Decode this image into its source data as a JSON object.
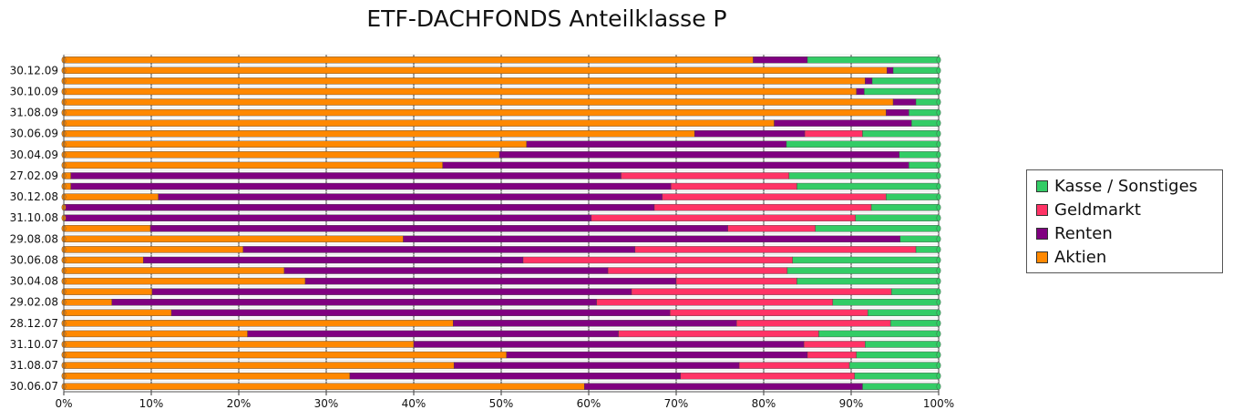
{
  "chart_data": {
    "type": "bar",
    "orientation": "horizontal",
    "stacked": true,
    "title": "ETF-DACHFONDS Anteilklasse P",
    "xlabel": "",
    "ylabel": "",
    "xlim": [
      0,
      100
    ],
    "grid": true,
    "legend_position": "right",
    "x_ticks": [
      "0%",
      "10%",
      "20%",
      "30%",
      "40%",
      "50%",
      "60%",
      "70%",
      "80%",
      "90%",
      "100%"
    ],
    "categories": [
      "",
      "30.12.09",
      "",
      "30.10.09",
      "",
      "31.08.09",
      "",
      "30.06.09",
      "",
      "30.04.09",
      "",
      "27.02.09",
      "",
      "30.12.08",
      "",
      "31.10.08",
      "",
      "29.08.08",
      "",
      "30.06.08",
      "",
      "30.04.08",
      "",
      "29.02.08",
      "",
      "28.12.07",
      "",
      "31.10.07",
      "",
      "31.08.07",
      "",
      "30.06.07"
    ],
    "series": [
      {
        "name": "Aktien",
        "color": "#ff8800",
        "values": [
          78.8,
          94.1,
          91.6,
          90.6,
          94.8,
          94.0,
          81.2,
          72.1,
          52.9,
          49.8,
          43.3,
          0.8,
          0.8,
          10.8,
          0.0,
          0.0,
          9.9,
          38.8,
          20.5,
          9.1,
          25.2,
          27.6,
          10.1,
          5.5,
          12.3,
          44.5,
          21.0,
          40.0,
          50.6,
          44.6,
          32.7,
          59.5
        ]
      },
      {
        "name": "Renten",
        "color": "#800080",
        "values": [
          6.2,
          0.7,
          0.8,
          0.9,
          2.6,
          2.6,
          15.7,
          12.6,
          29.7,
          45.7,
          53.3,
          62.9,
          68.6,
          57.6,
          67.5,
          60.3,
          66.0,
          56.8,
          44.8,
          43.4,
          37.0,
          42.4,
          54.8,
          55.4,
          57.0,
          32.4,
          42.4,
          44.6,
          34.4,
          32.6,
          37.8,
          31.8
        ]
      },
      {
        "name": "Geldmarkt",
        "color": "#ff3366",
        "values": [
          0.0,
          0.0,
          0.0,
          0.0,
          0.0,
          0.0,
          0.0,
          6.6,
          0.0,
          0.0,
          0.0,
          19.2,
          14.4,
          25.6,
          24.8,
          30.2,
          10.0,
          0.0,
          32.1,
          30.8,
          20.5,
          13.8,
          29.7,
          27.0,
          22.6,
          17.6,
          22.9,
          7.0,
          5.6,
          12.6,
          19.9,
          0.0
        ]
      },
      {
        "name": "Kasse / Sonstiges",
        "color": "#33cc66",
        "values": [
          15.0,
          5.2,
          7.6,
          8.5,
          2.6,
          3.4,
          3.1,
          8.7,
          17.4,
          4.5,
          3.4,
          17.1,
          16.2,
          6.0,
          7.7,
          9.5,
          14.1,
          4.4,
          2.6,
          16.7,
          17.3,
          16.2,
          5.4,
          12.1,
          8.1,
          5.5,
          13.7,
          8.4,
          9.4,
          10.2,
          9.6,
          8.7
        ]
      }
    ]
  }
}
